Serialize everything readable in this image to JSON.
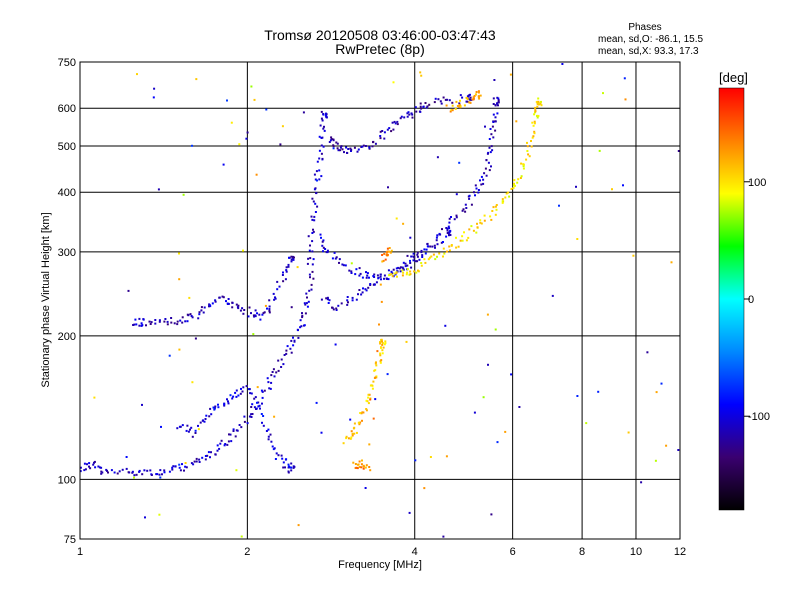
{
  "header": {
    "title_line1": "Tromsø 20120508 03:46:00-03:47:43",
    "title_line2": "RwPretec (8p)",
    "phases_heading": "Phases",
    "phases_o": "mean, sd,O: -86.1, 15.5",
    "phases_x": "mean, sd,X:  93.3, 17.3"
  },
  "colorbar": {
    "title": "[deg]",
    "ticks": [
      "100",
      "0",
      "-100"
    ],
    "tick_values": [
      100,
      0,
      -100
    ],
    "range": [
      -180,
      180
    ],
    "colors": [
      "#000000",
      "#3a0070",
      "#0000ff",
      "#0088ff",
      "#00ffff",
      "#00ff00",
      "#ffff00",
      "#ff8000",
      "#ff0000"
    ]
  },
  "chart_data": {
    "type": "scatter",
    "title": "Tromsø 20120508 03:46:00-03:47:43",
    "subtitle": "RwPretec (8p)",
    "xlabel": "Frequency [MHz]",
    "ylabel": "Stationary phase Virtual Height [km]",
    "x_scale": "log",
    "y_scale": "log",
    "xlim": [
      1,
      12
    ],
    "ylim": [
      75,
      750
    ],
    "xticks": [
      1,
      2,
      4,
      6,
      8,
      10,
      12
    ],
    "xtick_labels": [
      "1",
      "2",
      "4",
      "6",
      "8",
      "10",
      "12"
    ],
    "yticks": [
      75,
      100,
      200,
      300,
      400,
      500,
      600,
      750
    ],
    "ytick_labels": [
      "75",
      "100",
      "200",
      "300",
      "400",
      "500",
      "600",
      "750"
    ],
    "grid": true,
    "legend": "colorbar right",
    "color_meaning": "phase [deg]",
    "traces": [
      {
        "name": "",
        "phase": -110,
        "points": [
          [
            1.0,
            105
          ],
          [
            1.05,
            108
          ],
          [
            1.1,
            103
          ],
          [
            1.2,
            104
          ],
          [
            1.3,
            104
          ],
          [
            1.4,
            103
          ],
          [
            1.5,
            105
          ],
          [
            1.6,
            108
          ],
          [
            1.7,
            112
          ],
          [
            1.8,
            118
          ],
          [
            1.9,
            125
          ],
          [
            2.0,
            135
          ],
          [
            2.1,
            145
          ],
          [
            2.2,
            160
          ],
          [
            2.3,
            175
          ],
          [
            2.4,
            190
          ],
          [
            2.5,
            210
          ],
          [
            2.55,
            230
          ],
          [
            2.6,
            260
          ],
          [
            2.6,
            300
          ],
          [
            2.62,
            350
          ],
          [
            2.65,
            400
          ],
          [
            2.7,
            460
          ],
          [
            2.72,
            520
          ],
          [
            2.75,
            580
          ]
        ]
      },
      {
        "name": "",
        "phase": -110,
        "points": [
          [
            1.25,
            212
          ],
          [
            1.3,
            213
          ],
          [
            1.4,
            214
          ],
          [
            1.5,
            215
          ],
          [
            1.6,
            218
          ],
          [
            1.7,
            230
          ],
          [
            1.8,
            240
          ],
          [
            1.9,
            232
          ],
          [
            2.0,
            225
          ],
          [
            2.1,
            220
          ],
          [
            2.2,
            230
          ],
          [
            2.3,
            260
          ],
          [
            2.4,
            290
          ]
        ]
      },
      {
        "name": "",
        "phase": -115,
        "points": [
          [
            2.8,
            520
          ],
          [
            2.9,
            500
          ],
          [
            3.0,
            490
          ],
          [
            3.2,
            495
          ],
          [
            3.4,
            510
          ],
          [
            3.6,
            540
          ],
          [
            3.8,
            570
          ],
          [
            4.0,
            590
          ],
          [
            4.2,
            610
          ],
          [
            4.5,
            620
          ],
          [
            5.0,
            630
          ]
        ]
      },
      {
        "name": "",
        "phase": -110,
        "points": [
          [
            2.75,
            240
          ],
          [
            2.9,
            230
          ],
          [
            3.1,
            240
          ],
          [
            3.3,
            255
          ],
          [
            3.5,
            265
          ],
          [
            3.8,
            280
          ],
          [
            4.1,
            300
          ],
          [
            4.4,
            320
          ],
          [
            4.7,
            350
          ],
          [
            5.0,
            380
          ],
          [
            5.2,
            410
          ],
          [
            5.4,
            450
          ],
          [
            5.5,
            500
          ],
          [
            5.55,
            560
          ],
          [
            5.6,
            620
          ]
        ]
      },
      {
        "name": "",
        "phase": -105,
        "points": [
          [
            2.7,
            320
          ],
          [
            2.8,
            300
          ],
          [
            3.0,
            280
          ],
          [
            3.2,
            270
          ],
          [
            3.4,
            265
          ],
          [
            3.6,
            268
          ],
          [
            3.8,
            275
          ],
          [
            4.0,
            290
          ],
          [
            4.3,
            305
          ],
          [
            4.6,
            330
          ]
        ]
      },
      {
        "name": "",
        "phase": 100,
        "points": [
          [
            3.6,
            265
          ],
          [
            3.8,
            270
          ],
          [
            4.0,
            275
          ],
          [
            4.3,
            290
          ],
          [
            4.6,
            305
          ],
          [
            4.9,
            320
          ],
          [
            5.2,
            340
          ],
          [
            5.5,
            360
          ],
          [
            5.8,
            390
          ],
          [
            6.1,
            420
          ],
          [
            6.3,
            460
          ],
          [
            6.5,
            520
          ],
          [
            6.6,
            580
          ],
          [
            6.7,
            620
          ]
        ]
      },
      {
        "name": "",
        "phase": 110,
        "points": [
          [
            3.0,
            120
          ],
          [
            3.1,
            125
          ],
          [
            3.2,
            135
          ],
          [
            3.3,
            150
          ],
          [
            3.4,
            165
          ],
          [
            3.45,
            180
          ],
          [
            3.5,
            195
          ]
        ]
      },
      {
        "name": "",
        "phase": 130,
        "points": [
          [
            3.1,
            107
          ],
          [
            3.2,
            108
          ],
          [
            3.3,
            106
          ],
          [
            3.5,
            290
          ],
          [
            3.6,
            300
          ]
        ]
      },
      {
        "name": "",
        "phase": 120,
        "points": [
          [
            4.6,
            600
          ],
          [
            4.8,
            615
          ],
          [
            5.0,
            625
          ],
          [
            5.2,
            640
          ]
        ]
      },
      {
        "name": "",
        "phase": -100,
        "points": [
          [
            1.5,
            130
          ],
          [
            1.6,
            125
          ],
          [
            1.7,
            135
          ],
          [
            1.8,
            145
          ],
          [
            1.9,
            150
          ],
          [
            2.0,
            155
          ],
          [
            2.1,
            140
          ],
          [
            2.2,
            120
          ],
          [
            2.3,
            110
          ],
          [
            2.4,
            105
          ]
        ]
      }
    ]
  }
}
